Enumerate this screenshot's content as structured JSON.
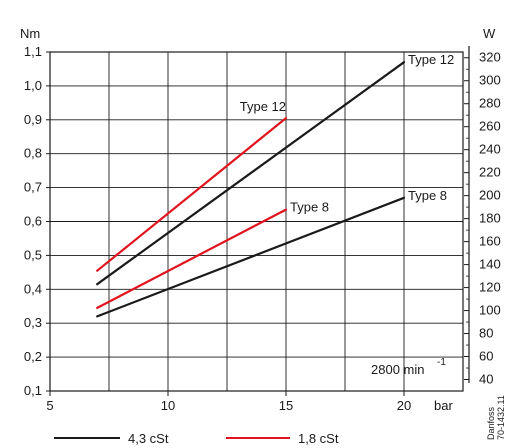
{
  "chart_data": {
    "type": "line",
    "title": "",
    "xlabel": "bar",
    "ylabel": "Nm",
    "y2label": "W",
    "xlim": [
      5,
      22.5
    ],
    "ylim": [
      0.1,
      1.1
    ],
    "y2lim": [
      30,
      325
    ],
    "x_ticks": [
      "5",
      "10",
      "15",
      "20"
    ],
    "y_ticks": [
      "0,1",
      "0,2",
      "0,3",
      "0,4",
      "0,5",
      "0,6",
      "0,7",
      "0,8",
      "0,9",
      "1,0",
      "1,1"
    ],
    "y2_ticks": [
      "40",
      "60",
      "80",
      "100",
      "120",
      "140",
      "160",
      "180",
      "200",
      "220",
      "240",
      "260",
      "280",
      "300",
      "320"
    ],
    "grid": true,
    "series": [
      {
        "name": "4,3 cSt",
        "label": "Type 12",
        "color": "#1a1a1a",
        "x": [
          7,
          20
        ],
        "y": [
          0.415,
          1.07
        ]
      },
      {
        "name": "4,3 cSt",
        "label": "Type 8",
        "color": "#1a1a1a",
        "x": [
          7,
          20
        ],
        "y": [
          0.32,
          0.67
        ]
      },
      {
        "name": "1,8 cSt",
        "label": "Type 12",
        "color": "#e0141e",
        "x": [
          7,
          15
        ],
        "y": [
          0.455,
          0.905
        ]
      },
      {
        "name": "1,8 cSt",
        "label": "Type 8",
        "color": "#e0141e",
        "x": [
          7,
          15
        ],
        "y": [
          0.345,
          0.635
        ]
      }
    ],
    "annotations": [
      "2800 min",
      "-1"
    ],
    "legend": {
      "position": "bottom",
      "entries": [
        {
          "label": "4,3 cSt",
          "color": "#1a1a1a"
        },
        {
          "label": "1,8 cSt",
          "color": "#e0141e"
        }
      ]
    },
    "source_note": [
      "Danfoss",
      "70-1432.11"
    ]
  }
}
